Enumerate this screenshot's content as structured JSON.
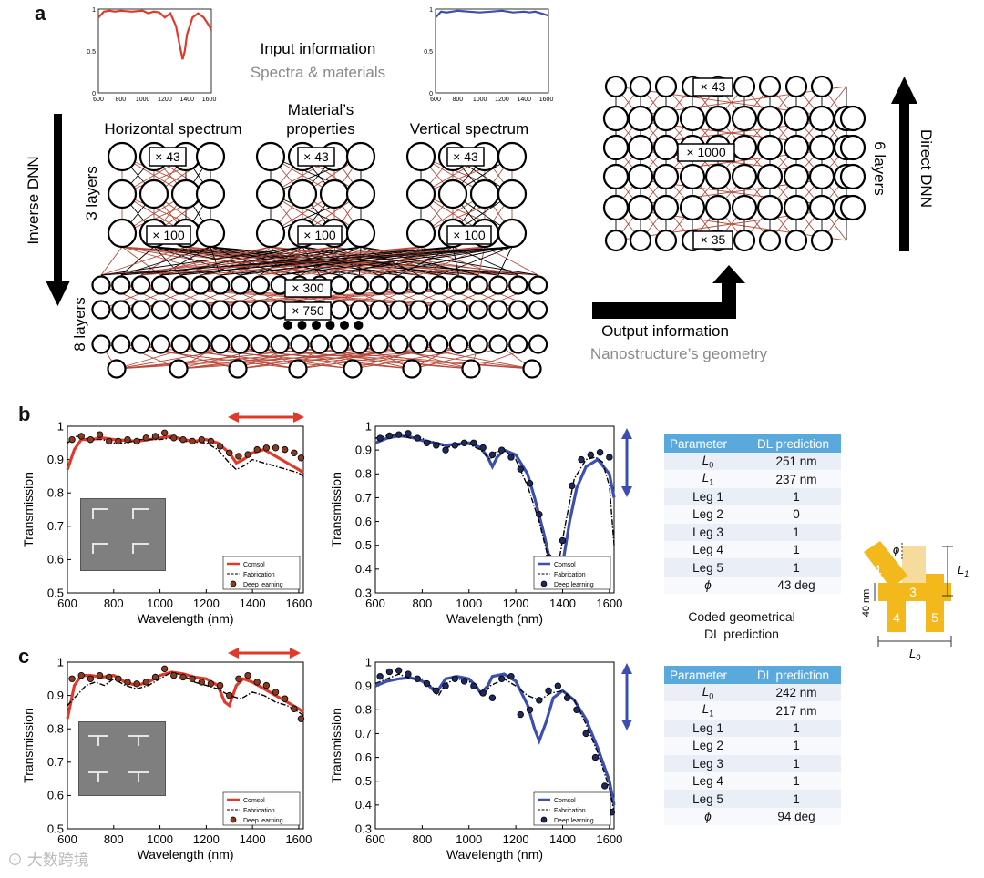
{
  "panels": {
    "a": "a",
    "b": "b",
    "c": "c"
  },
  "panel_a": {
    "input_title": "Input information",
    "input_subtitle": "Spectra & materials",
    "output_title": "Output information",
    "output_subtitle": "Nanostructure’s geometry",
    "inverse_label": "Inverse DNN",
    "direct_label": "Direct DNN",
    "three_layers": "3 layers",
    "eight_layers": "8 layers",
    "six_layers": "6 layers",
    "horizontal_spectrum": "Horizontal spectrum",
    "material_line1": "Material’s",
    "material_line2": "properties",
    "vertical_spectrum": "Vertical spectrum",
    "x43": "× 43",
    "x100": "× 100",
    "x300": "× 300",
    "x750": "× 750",
    "x1000": "× 1000",
    "x35": "× 35",
    "mini_ticks_x": [
      "600",
      "800",
      "1000",
      "1200",
      "1400",
      "1600"
    ],
    "mini_ticks_y": [
      "1",
      "0.5",
      "0"
    ],
    "colors": {
      "red": "#e03a2a",
      "blue": "#3b4fb3",
      "link": "#b84a3a"
    }
  },
  "shape": {
    "phi": "ϕ",
    "l1": "L",
    "l1_sub": "1",
    "l0": "L",
    "l0_sub": "0",
    "leg1": "1",
    "leg2": "2",
    "leg3": "3",
    "leg4": "4",
    "leg5": "5",
    "width_label": "40 nm",
    "coded_line1": "Coded geometrical",
    "coded_line2": "DL prediction",
    "colors": {
      "gold": "#f2b81c",
      "gold_light": "#f6dc9c"
    }
  },
  "tables": {
    "headers": [
      "Parameter",
      "DL prediction"
    ],
    "b": {
      "rows": [
        {
          "param": "L",
          "sub": "0",
          "value": "251 nm"
        },
        {
          "param": "L",
          "sub": "1",
          "value": "237 nm"
        },
        {
          "param": "Leg 1",
          "sub": "",
          "value": "1"
        },
        {
          "param": "Leg 2",
          "sub": "",
          "value": "0"
        },
        {
          "param": "Leg 3",
          "sub": "",
          "value": "1"
        },
        {
          "param": "Leg 4",
          "sub": "",
          "value": "1"
        },
        {
          "param": "Leg 5",
          "sub": "",
          "value": "1"
        },
        {
          "param": "ϕ",
          "sub": "",
          "value": "43 deg"
        }
      ]
    },
    "c": {
      "rows": [
        {
          "param": "L",
          "sub": "0",
          "value": "242 nm"
        },
        {
          "param": "L",
          "sub": "1",
          "value": "217 nm"
        },
        {
          "param": "Leg 1",
          "sub": "",
          "value": "1"
        },
        {
          "param": "Leg 2",
          "sub": "",
          "value": "1"
        },
        {
          "param": "Leg 3",
          "sub": "",
          "value": "1"
        },
        {
          "param": "Leg 4",
          "sub": "",
          "value": "1"
        },
        {
          "param": "Leg 5",
          "sub": "",
          "value": "1"
        },
        {
          "param": "ϕ",
          "sub": "",
          "value": "94 deg"
        }
      ]
    }
  },
  "watermark": "大数跨境",
  "chart_data": [
    {
      "id": "b-left",
      "type": "line",
      "xlabel": "Wavelength (nm)",
      "ylabel": "Transmission",
      "xlim": [
        600,
        1620
      ],
      "ylim": [
        0.5,
        1.0
      ],
      "xticks": [
        600,
        800,
        1000,
        1200,
        1400,
        1600
      ],
      "yticks": [
        0.5,
        0.6,
        0.7,
        0.8,
        0.9,
        1
      ],
      "color": "#e03a2a",
      "legend": [
        "Comsol",
        "Fabrication",
        "Deep learning"
      ],
      "series": [
        {
          "name": "Comsol",
          "x": [
            600,
            630,
            660,
            700,
            750,
            800,
            900,
            1000,
            1050,
            1100,
            1150,
            1200,
            1250,
            1300,
            1330,
            1360,
            1400,
            1450,
            1500,
            1550,
            1600,
            1620
          ],
          "y": [
            0.87,
            0.93,
            0.96,
            0.96,
            0.965,
            0.96,
            0.955,
            0.965,
            0.97,
            0.96,
            0.955,
            0.96,
            0.95,
            0.92,
            0.89,
            0.9,
            0.92,
            0.93,
            0.91,
            0.89,
            0.87,
            0.86
          ]
        },
        {
          "name": "Fabrication",
          "x": [
            600,
            640,
            700,
            750,
            800,
            860,
            900,
            1000,
            1050,
            1100,
            1200,
            1250,
            1300,
            1330,
            1360,
            1400,
            1450,
            1500,
            1550,
            1600,
            1620
          ],
          "y": [
            0.95,
            0.97,
            0.96,
            0.96,
            0.95,
            0.95,
            0.96,
            0.96,
            0.965,
            0.955,
            0.95,
            0.93,
            0.89,
            0.87,
            0.88,
            0.9,
            0.89,
            0.88,
            0.87,
            0.86,
            0.85
          ]
        },
        {
          "name": "Deep learning",
          "x": [
            620,
            660,
            700,
            740,
            780,
            820,
            860,
            900,
            940,
            980,
            1020,
            1060,
            1100,
            1140,
            1180,
            1220,
            1260,
            1300,
            1340,
            1380,
            1420,
            1460,
            1500,
            1540,
            1580,
            1610
          ],
          "y": [
            0.96,
            0.97,
            0.96,
            0.975,
            0.955,
            0.955,
            0.96,
            0.955,
            0.965,
            0.97,
            0.98,
            0.965,
            0.96,
            0.955,
            0.96,
            0.955,
            0.94,
            0.92,
            0.91,
            0.915,
            0.93,
            0.935,
            0.935,
            0.93,
            0.92,
            0.905
          ]
        }
      ]
    },
    {
      "id": "b-right",
      "type": "line",
      "xlabel": "Wavelength (nm)",
      "ylabel": "Transmission",
      "xlim": [
        600,
        1620
      ],
      "ylim": [
        0.3,
        1.0
      ],
      "xticks": [
        600,
        800,
        1000,
        1200,
        1400,
        1600
      ],
      "yticks": [
        0.3,
        0.4,
        0.5,
        0.6,
        0.7,
        0.8,
        0.9,
        1
      ],
      "color": "#3b4fb3",
      "legend": [
        "Comsol",
        "Fabrication",
        "Deep learning"
      ],
      "series": [
        {
          "name": "Comsol",
          "x": [
            600,
            650,
            700,
            750,
            800,
            850,
            900,
            950,
            1000,
            1050,
            1080,
            1100,
            1120,
            1150,
            1200,
            1250,
            1280,
            1320,
            1350,
            1375,
            1400,
            1430,
            1460,
            1500,
            1550,
            1600,
            1620
          ],
          "y": [
            0.93,
            0.95,
            0.96,
            0.955,
            0.94,
            0.93,
            0.92,
            0.925,
            0.93,
            0.91,
            0.87,
            0.83,
            0.87,
            0.9,
            0.88,
            0.8,
            0.7,
            0.55,
            0.42,
            0.36,
            0.42,
            0.6,
            0.74,
            0.83,
            0.86,
            0.8,
            0.7
          ]
        },
        {
          "name": "Fabrication",
          "x": [
            600,
            650,
            700,
            750,
            780,
            820,
            870,
            900,
            950,
            1000,
            1050,
            1090,
            1110,
            1150,
            1200,
            1250,
            1300,
            1340,
            1360,
            1380,
            1410,
            1450,
            1500,
            1540,
            1570,
            1600,
            1620
          ],
          "y": [
            0.95,
            0.96,
            0.965,
            0.95,
            0.96,
            0.94,
            0.93,
            0.91,
            0.92,
            0.925,
            0.9,
            0.86,
            0.89,
            0.9,
            0.86,
            0.75,
            0.6,
            0.44,
            0.39,
            0.41,
            0.58,
            0.78,
            0.86,
            0.87,
            0.85,
            0.75,
            0.5
          ]
        },
        {
          "name": "Deep learning",
          "x": [
            620,
            660,
            700,
            740,
            780,
            820,
            860,
            900,
            940,
            980,
            1020,
            1060,
            1100,
            1140,
            1180,
            1220,
            1260,
            1300,
            1340,
            1370,
            1400,
            1440,
            1480,
            1520,
            1560,
            1600
          ],
          "y": [
            0.95,
            0.96,
            0.965,
            0.97,
            0.95,
            0.93,
            0.92,
            0.9,
            0.92,
            0.93,
            0.93,
            0.91,
            0.88,
            0.9,
            0.87,
            0.82,
            0.76,
            0.63,
            0.45,
            0.35,
            0.52,
            0.75,
            0.86,
            0.88,
            0.89,
            0.87
          ]
        }
      ]
    },
    {
      "id": "c-left",
      "type": "line",
      "xlabel": "Wavelength (nm)",
      "ylabel": "Transmission",
      "xlim": [
        600,
        1620
      ],
      "ylim": [
        0.5,
        1.0
      ],
      "xticks": [
        600,
        800,
        1000,
        1200,
        1400,
        1600
      ],
      "yticks": [
        0.5,
        0.6,
        0.7,
        0.8,
        0.9,
        1
      ],
      "color": "#e03a2a",
      "legend": [
        "Comsol",
        "Fabrication",
        "Deep learning"
      ],
      "series": [
        {
          "name": "Comsol",
          "x": [
            600,
            630,
            660,
            700,
            750,
            800,
            850,
            900,
            950,
            1000,
            1050,
            1100,
            1150,
            1200,
            1250,
            1280,
            1300,
            1330,
            1360,
            1400,
            1450,
            1500,
            1550,
            1600,
            1620
          ],
          "y": [
            0.83,
            0.93,
            0.96,
            0.96,
            0.955,
            0.96,
            0.94,
            0.93,
            0.94,
            0.96,
            0.97,
            0.965,
            0.955,
            0.95,
            0.93,
            0.88,
            0.87,
            0.93,
            0.95,
            0.94,
            0.92,
            0.9,
            0.88,
            0.86,
            0.85
          ]
        },
        {
          "name": "Fabrication",
          "x": [
            600,
            640,
            680,
            720,
            760,
            800,
            850,
            900,
            950,
            1000,
            1050,
            1100,
            1150,
            1200,
            1250,
            1300,
            1350,
            1400,
            1450,
            1500,
            1550,
            1600,
            1620
          ],
          "y": [
            0.87,
            0.9,
            0.93,
            0.94,
            0.93,
            0.95,
            0.93,
            0.92,
            0.93,
            0.95,
            0.97,
            0.96,
            0.94,
            0.93,
            0.92,
            0.9,
            0.89,
            0.91,
            0.9,
            0.88,
            0.87,
            0.85,
            0.84
          ]
        },
        {
          "name": "Deep learning",
          "x": [
            620,
            660,
            700,
            740,
            780,
            820,
            860,
            900,
            940,
            980,
            1020,
            1060,
            1100,
            1140,
            1180,
            1220,
            1260,
            1300,
            1340,
            1380,
            1420,
            1460,
            1500,
            1540,
            1580,
            1610
          ],
          "y": [
            0.95,
            0.96,
            0.95,
            0.96,
            0.955,
            0.95,
            0.94,
            0.935,
            0.94,
            0.955,
            0.98,
            0.96,
            0.955,
            0.95,
            0.94,
            0.935,
            0.93,
            0.9,
            0.95,
            0.96,
            0.94,
            0.93,
            0.91,
            0.89,
            0.86,
            0.83
          ]
        }
      ]
    },
    {
      "id": "c-right",
      "type": "line",
      "xlabel": "Wavelength (nm)",
      "ylabel": "Transmission",
      "xlim": [
        600,
        1620
      ],
      "ylim": [
        0.3,
        1.0
      ],
      "xticks": [
        600,
        800,
        1000,
        1200,
        1400,
        1600
      ],
      "yticks": [
        0.3,
        0.4,
        0.5,
        0.6,
        0.7,
        0.8,
        0.9,
        1
      ],
      "color": "#3b4fb3",
      "legend": [
        "Comsol",
        "Fabrication",
        "Deep learning"
      ],
      "series": [
        {
          "name": "Comsol",
          "x": [
            600,
            650,
            700,
            750,
            800,
            830,
            860,
            880,
            900,
            950,
            1000,
            1030,
            1050,
            1080,
            1100,
            1150,
            1200,
            1250,
            1280,
            1300,
            1330,
            1360,
            1400,
            1450,
            1500,
            1550,
            1600,
            1620
          ],
          "y": [
            0.9,
            0.92,
            0.93,
            0.935,
            0.92,
            0.9,
            0.87,
            0.9,
            0.93,
            0.94,
            0.93,
            0.9,
            0.87,
            0.9,
            0.94,
            0.95,
            0.92,
            0.82,
            0.72,
            0.67,
            0.75,
            0.85,
            0.88,
            0.84,
            0.76,
            0.64,
            0.5,
            0.4
          ]
        },
        {
          "name": "Fabrication",
          "x": [
            600,
            650,
            700,
            750,
            800,
            850,
            870,
            900,
            950,
            1000,
            1040,
            1060,
            1090,
            1150,
            1200,
            1250,
            1300,
            1350,
            1400,
            1450,
            1500,
            1550,
            1600,
            1620
          ],
          "y": [
            0.91,
            0.93,
            0.95,
            0.93,
            0.93,
            0.89,
            0.86,
            0.91,
            0.93,
            0.92,
            0.88,
            0.86,
            0.9,
            0.93,
            0.9,
            0.86,
            0.84,
            0.87,
            0.88,
            0.84,
            0.74,
            0.62,
            0.47,
            0.37
          ]
        },
        {
          "name": "Deep learning",
          "x": [
            620,
            660,
            700,
            740,
            780,
            820,
            860,
            900,
            940,
            980,
            1020,
            1060,
            1100,
            1140,
            1180,
            1220,
            1260,
            1300,
            1340,
            1380,
            1420,
            1460,
            1500,
            1540,
            1580,
            1610
          ],
          "y": [
            0.94,
            0.96,
            0.965,
            0.95,
            0.93,
            0.91,
            0.88,
            0.9,
            0.93,
            0.92,
            0.9,
            0.87,
            0.85,
            0.93,
            0.94,
            0.78,
            0.8,
            0.84,
            0.88,
            0.9,
            0.85,
            0.8,
            0.7,
            0.6,
            0.48,
            0.37
          ]
        }
      ]
    },
    {
      "id": "mini-red",
      "type": "line",
      "xlim": [
        600,
        1620
      ],
      "ylim": [
        0,
        1
      ],
      "xticks": [
        600,
        800,
        1000,
        1200,
        1400,
        1600
      ],
      "yticks": [
        0,
        0.5,
        1
      ],
      "color": "#e03a2a",
      "series": [
        {
          "name": "Horizontal spectrum",
          "x": [
            600,
            650,
            700,
            750,
            800,
            900,
            1000,
            1050,
            1100,
            1150,
            1200,
            1250,
            1300,
            1330,
            1360,
            1380,
            1400,
            1450,
            1500,
            1550,
            1600,
            1620
          ],
          "y": [
            0.9,
            0.97,
            0.98,
            0.97,
            0.98,
            0.97,
            0.98,
            0.95,
            0.97,
            0.96,
            0.9,
            0.95,
            0.8,
            0.6,
            0.4,
            0.5,
            0.7,
            0.9,
            0.95,
            0.9,
            0.8,
            0.75
          ]
        }
      ]
    },
    {
      "id": "mini-blue",
      "type": "line",
      "xlim": [
        600,
        1620
      ],
      "ylim": [
        0,
        1
      ],
      "xticks": [
        600,
        800,
        1000,
        1200,
        1400,
        1600
      ],
      "yticks": [
        0,
        0.5,
        1
      ],
      "color": "#3b4fb3",
      "series": [
        {
          "name": "Vertical spectrum",
          "x": [
            600,
            650,
            700,
            800,
            900,
            1000,
            1100,
            1200,
            1300,
            1400,
            1450,
            1500,
            1550,
            1600,
            1620
          ],
          "y": [
            0.9,
            0.97,
            0.96,
            0.98,
            0.97,
            0.96,
            0.97,
            0.98,
            0.96,
            0.97,
            0.96,
            0.97,
            0.95,
            0.93,
            0.92
          ]
        }
      ]
    }
  ]
}
